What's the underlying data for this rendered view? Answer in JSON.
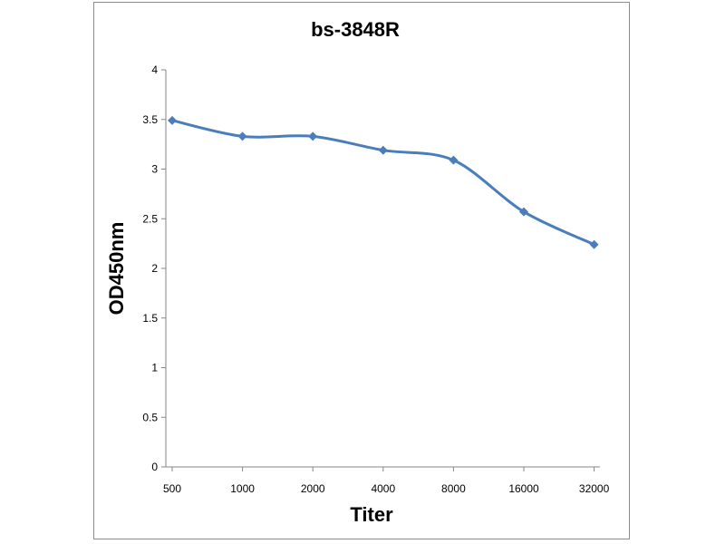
{
  "chart_data": {
    "type": "line",
    "title": "bs-3848R",
    "xlabel": "Titer",
    "ylabel": "OD450nm",
    "categories": [
      "500",
      "1000",
      "2000",
      "4000",
      "8000",
      "16000",
      "32000"
    ],
    "series": [
      {
        "values": [
          3.49,
          3.33,
          3.33,
          3.19,
          3.09,
          2.57,
          2.24
        ]
      }
    ],
    "ylim": [
      0,
      4
    ],
    "yticks": [
      "0",
      "0.5",
      "1",
      "1.5",
      "2",
      "2.5",
      "3",
      "3.5",
      "4"
    ],
    "grid": false,
    "legend": "none",
    "marker": "diamond",
    "series_color": "#4a7ebb"
  }
}
